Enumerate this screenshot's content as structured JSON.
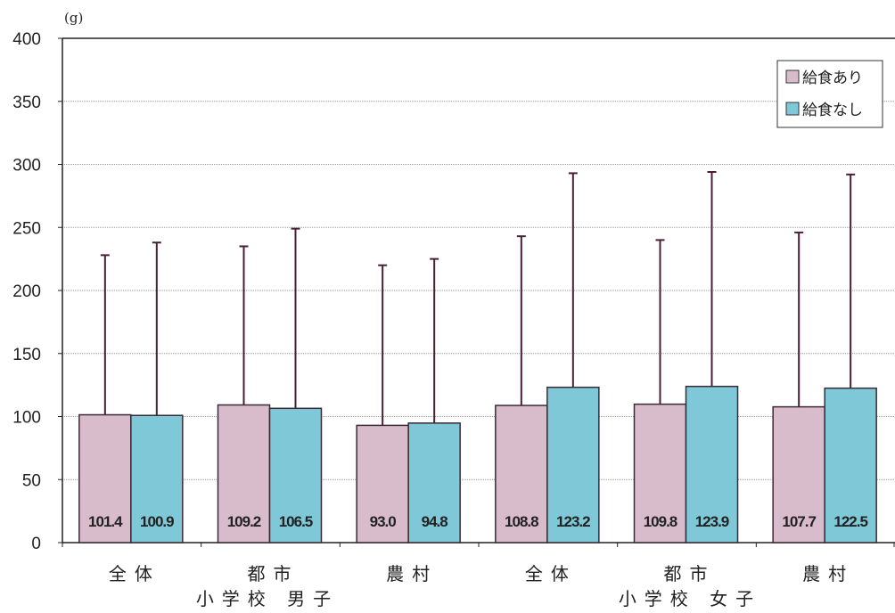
{
  "chart_data": {
    "type": "bar",
    "unit": "(g)",
    "ylim": [
      0,
      400
    ],
    "yticks": [
      "0",
      "50",
      "100",
      "150",
      "200",
      "250",
      "300",
      "350",
      "400"
    ],
    "grid": true,
    "legend_position": "top-right",
    "categories": [
      "全体",
      "都市",
      "農村",
      "全体",
      "都市",
      "農村"
    ],
    "groups": [
      {
        "label": "小学校 男子"
      },
      {
        "label": "小学校 女子"
      }
    ],
    "series": [
      {
        "name": "給食あり",
        "color": "#d8bccc",
        "values": [
          101.4,
          109.2,
          93.0,
          108.8,
          109.8,
          107.7
        ],
        "labels": [
          "101.4",
          "109.2",
          "93.0",
          "108.8",
          "109.8",
          "107.7"
        ],
        "error_top": [
          228,
          235,
          220,
          243,
          240,
          246
        ]
      },
      {
        "name": "給食なし",
        "color": "#7ec8d8",
        "values": [
          100.9,
          106.5,
          94.8,
          123.2,
          123.9,
          122.5
        ],
        "labels": [
          "100.9",
          "106.5",
          "94.8",
          "123.2",
          "123.9",
          "122.5"
        ],
        "error_top": [
          238,
          249,
          225,
          293,
          294,
          292
        ]
      }
    ]
  }
}
